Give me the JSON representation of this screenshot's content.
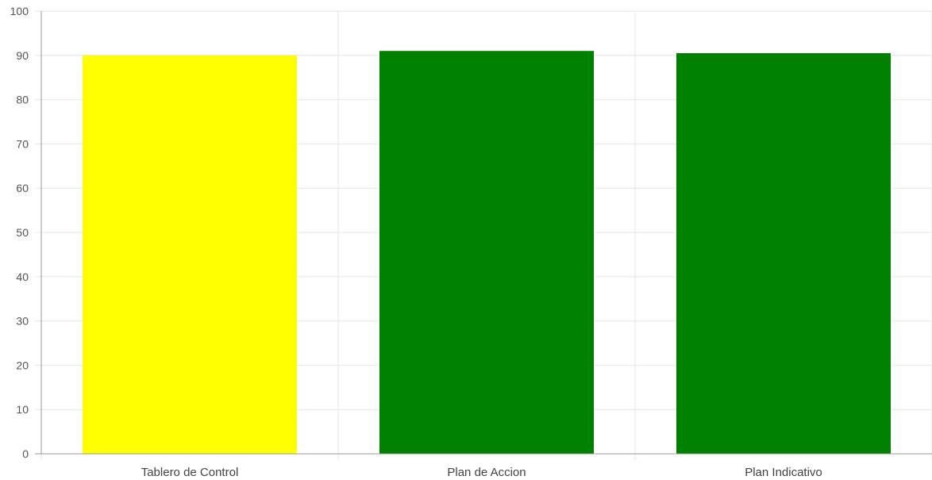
{
  "chart_data": {
    "type": "bar",
    "categories": [
      "Tablero de Control",
      "Plan de Accion",
      "Plan Indicativo"
    ],
    "values": [
      90,
      91,
      90.5
    ],
    "colors": [
      "#ffff00",
      "#008000",
      "#008000"
    ],
    "ylim": [
      0,
      100
    ],
    "yticks": [
      0,
      10,
      20,
      30,
      40,
      50,
      60,
      70,
      80,
      90,
      100
    ],
    "grid": true,
    "legend": "none",
    "title": "",
    "xlabel": "",
    "ylabel": ""
  }
}
